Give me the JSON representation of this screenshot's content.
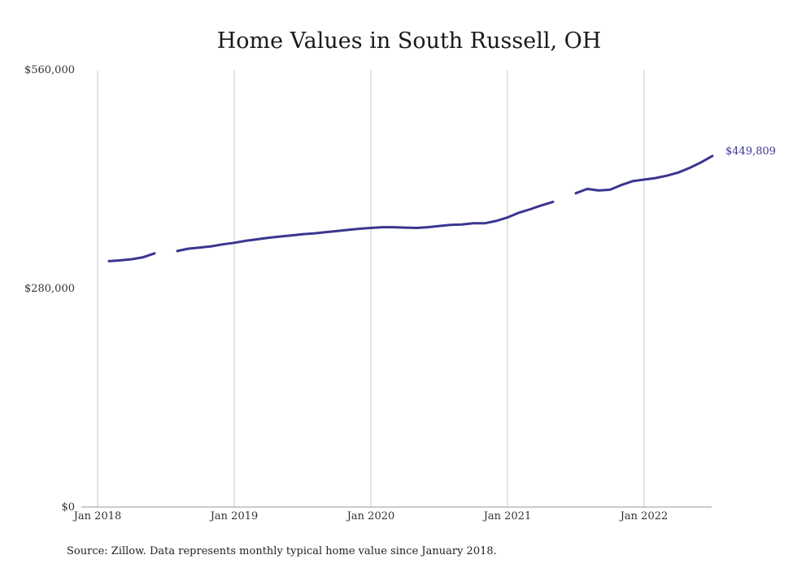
{
  "chart_data": {
    "type": "line",
    "title": "Home Values in South Russell, OH",
    "xlabel": "",
    "ylabel": "",
    "x_ticks": [
      "Jan 2018",
      "Jan 2019",
      "Jan 2020",
      "Jan 2021",
      "Jan 2022"
    ],
    "y_ticks": [
      "$560,000",
      "$280,000",
      "$0"
    ],
    "ylim": [
      0,
      560000
    ],
    "xlim": [
      "2018-01",
      "2022-07"
    ],
    "grid": "vertical",
    "series": [
      {
        "color": "#3b3590",
        "end_label": "$449,809",
        "points": [
          {
            "x": "2018-02",
            "y": 315000
          },
          {
            "x": "2018-03",
            "y": 316000
          },
          {
            "x": "2018-04",
            "y": 317500
          },
          {
            "x": "2018-05",
            "y": 320000
          },
          {
            "x": "2018-06",
            "y": 325000
          },
          {
            "x": "2018-07",
            "y": null
          },
          {
            "x": "2018-08",
            "y": 328000
          },
          {
            "x": "2018-09",
            "y": 331000
          },
          {
            "x": "2018-10",
            "y": 332500
          },
          {
            "x": "2018-11",
            "y": 334000
          },
          {
            "x": "2018-12",
            "y": 336500
          },
          {
            "x": "2019-01",
            "y": 338500
          },
          {
            "x": "2019-02",
            "y": 341000
          },
          {
            "x": "2019-03",
            "y": 343000
          },
          {
            "x": "2019-04",
            "y": 345000
          },
          {
            "x": "2019-05",
            "y": 346500
          },
          {
            "x": "2019-06",
            "y": 348000
          },
          {
            "x": "2019-07",
            "y": 349500
          },
          {
            "x": "2019-08",
            "y": 350500
          },
          {
            "x": "2019-09",
            "y": 352000
          },
          {
            "x": "2019-10",
            "y": 353500
          },
          {
            "x": "2019-11",
            "y": 355000
          },
          {
            "x": "2019-12",
            "y": 356500
          },
          {
            "x": "2020-01",
            "y": 357500
          },
          {
            "x": "2020-02",
            "y": 358500
          },
          {
            "x": "2020-03",
            "y": 358500
          },
          {
            "x": "2020-04",
            "y": 358000
          },
          {
            "x": "2020-05",
            "y": 357500
          },
          {
            "x": "2020-06",
            "y": 358500
          },
          {
            "x": "2020-07",
            "y": 360000
          },
          {
            "x": "2020-08",
            "y": 361500
          },
          {
            "x": "2020-09",
            "y": 362000
          },
          {
            "x": "2020-10",
            "y": 363500
          },
          {
            "x": "2020-11",
            "y": 363500
          },
          {
            "x": "2020-12",
            "y": 366500
          },
          {
            "x": "2021-01",
            "y": 371000
          },
          {
            "x": "2021-02",
            "y": 377000
          },
          {
            "x": "2021-03",
            "y": 381500
          },
          {
            "x": "2021-04",
            "y": 386500
          },
          {
            "x": "2021-05",
            "y": 391000
          },
          {
            "x": "2021-06",
            "y": null
          },
          {
            "x": "2021-07",
            "y": 402000
          },
          {
            "x": "2021-08",
            "y": 407500
          },
          {
            "x": "2021-09",
            "y": 405500
          },
          {
            "x": "2021-10",
            "y": 406500
          },
          {
            "x": "2021-11",
            "y": 412500
          },
          {
            "x": "2021-12",
            "y": 417500
          },
          {
            "x": "2022-01",
            "y": 419500
          },
          {
            "x": "2022-02",
            "y": 421500
          },
          {
            "x": "2022-03",
            "y": 424500
          },
          {
            "x": "2022-04",
            "y": 428500
          },
          {
            "x": "2022-05",
            "y": 434500
          },
          {
            "x": "2022-06",
            "y": 441500
          },
          {
            "x": "2022-07",
            "y": 449809
          }
        ]
      }
    ]
  },
  "source_note": "Source: Zillow. Data represents monthly typical home value since January 2018."
}
